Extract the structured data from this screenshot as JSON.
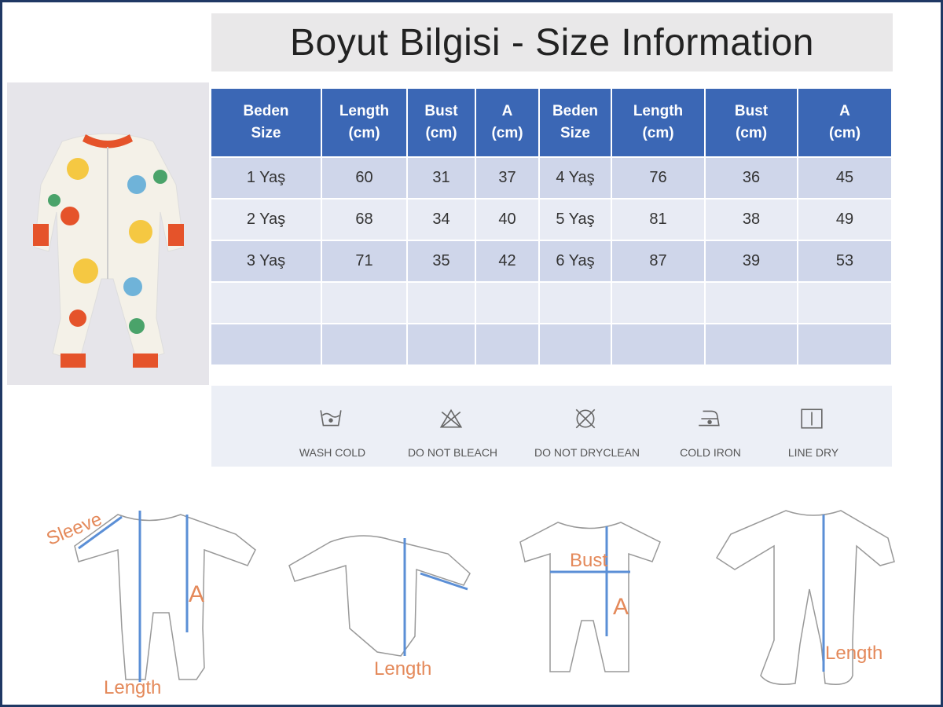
{
  "title": "Boyut Bilgisi - Size Information",
  "table": {
    "headers": [
      [
        "Beden",
        "Size"
      ],
      [
        "Length",
        "(cm)"
      ],
      [
        "Bust",
        "(cm)"
      ],
      [
        "A",
        "(cm)"
      ],
      [
        "Beden",
        "Size"
      ],
      [
        "Length",
        "(cm)"
      ],
      [
        "Bust",
        "(cm)"
      ],
      [
        "A",
        "(cm)"
      ]
    ],
    "rows": [
      [
        "1 Yaş",
        "60",
        "31",
        "37",
        "4 Yaş",
        "76",
        "36",
        "45"
      ],
      [
        "2 Yaş",
        "68",
        "34",
        "40",
        "5 Yaş",
        "81",
        "38",
        "49"
      ],
      [
        "3 Yaş",
        "71",
        "35",
        "42",
        "6 Yaş",
        "87",
        "39",
        "53"
      ],
      [
        "",
        "",
        "",
        "",
        "",
        "",
        "",
        ""
      ],
      [
        "",
        "",
        "",
        "",
        "",
        "",
        "",
        ""
      ]
    ]
  },
  "care": [
    {
      "label": "WASH COLD",
      "icon": "wash-cold-icon"
    },
    {
      "label": "DO NOT BLEACH",
      "icon": "no-bleach-icon"
    },
    {
      "label": "DO NOT DRYCLEAN",
      "icon": "no-dryclean-icon"
    },
    {
      "label": "COLD IRON",
      "icon": "cold-iron-icon"
    },
    {
      "label": "LINE DRY",
      "icon": "line-dry-icon"
    }
  ],
  "diagram_labels": {
    "sleeve": "Sleeve",
    "a1": "A",
    "length1": "Length",
    "length2": "Length",
    "bust": "Bust",
    "a2": "A",
    "length3": "Length"
  },
  "colors": {
    "header": "#3b67b5",
    "row_dark": "#cfd6ea",
    "row_light": "#e8ebf4",
    "frame": "#1f3864",
    "measure": "#5b8fd6",
    "label": "#e4895a"
  }
}
